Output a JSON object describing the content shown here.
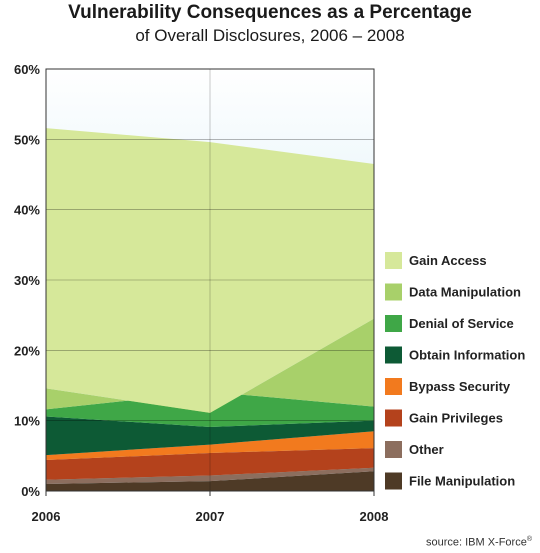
{
  "chart_data": {
    "type": "area",
    "title": "Vulnerability Consequences as a Percentage",
    "subtitle": "of Overall Disclosures, 2006 – 2008",
    "x": [
      "2006",
      "2007",
      "2008"
    ],
    "ylim": [
      0,
      60
    ],
    "y_ticks": [
      "0%",
      "10%",
      "20%",
      "30%",
      "40%",
      "50%",
      "60%"
    ],
    "y_tick_values": [
      0,
      10,
      20,
      30,
      40,
      50,
      60
    ],
    "grid": true,
    "legend_position": "right",
    "series": [
      {
        "name": "Gain Access",
        "values": [
          37,
          38.5,
          22
        ],
        "color": "#d6e89a"
      },
      {
        "name": "Data Manipulation",
        "values": [
          3,
          -3,
          12.5
        ],
        "color": "#a8d06a"
      },
      {
        "name": "Denial of Service",
        "values": [
          1,
          5,
          2
        ],
        "color": "#3fa747"
      },
      {
        "name": "Obtain Information",
        "values": [
          5.5,
          2.5,
          1.5
        ],
        "color": "#0d5a35"
      },
      {
        "name": "Bypass Security",
        "values": [
          0.7,
          1.2,
          2.4
        ],
        "color": "#f27a1e"
      },
      {
        "name": "Gain Privileges",
        "values": [
          2.8,
          3.2,
          2.8
        ],
        "color": "#b4421c"
      },
      {
        "name": "Other",
        "values": [
          0.6,
          0.8,
          0.5
        ],
        "color": "#8c6e5e"
      },
      {
        "name": "File Manipulation",
        "values": [
          1.0,
          1.4,
          2.8
        ],
        "color": "#4e3a26"
      }
    ]
  },
  "source": "source: IBM X-Force",
  "source_mark": "®"
}
